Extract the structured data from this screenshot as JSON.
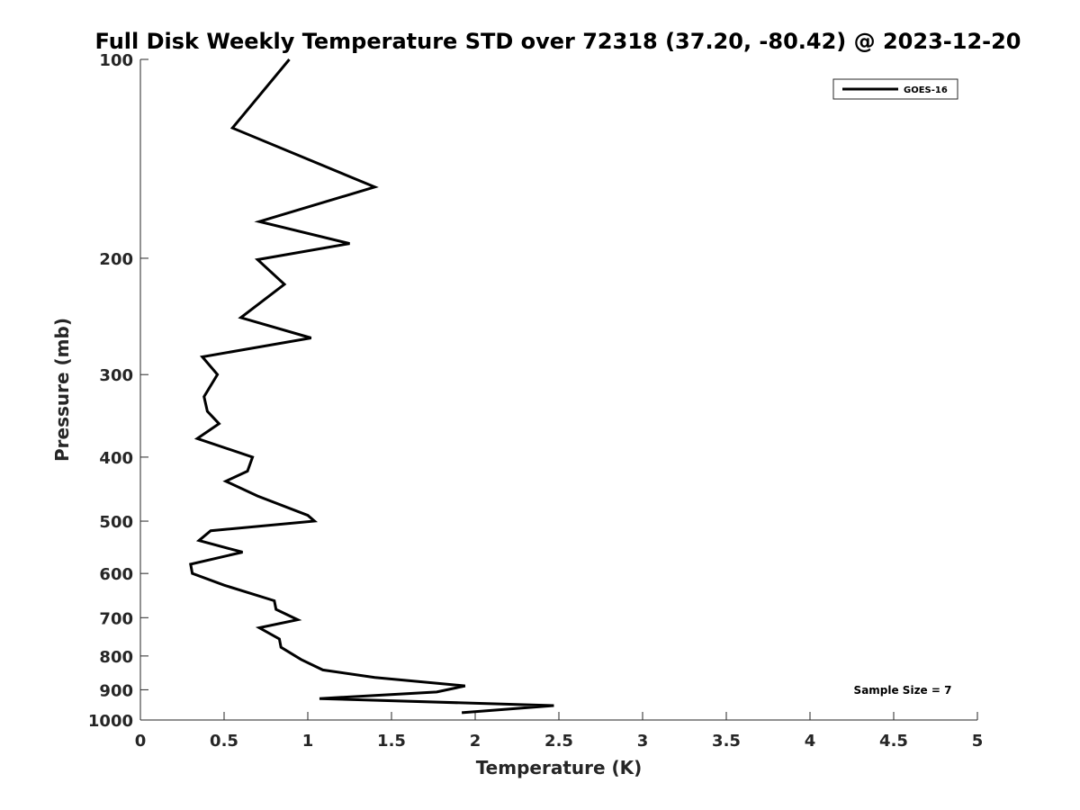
{
  "chart_data": {
    "type": "line",
    "title": "Full Disk Weekly Temperature STD over 72318 (37.20, -80.42) @ 2023-12-20",
    "xlabel": "Temperature (K)",
    "ylabel": "Pressure (mb)",
    "xlim": [
      0,
      5
    ],
    "ylim": [
      100,
      1000
    ],
    "y_scale": "log",
    "y_reversed": true,
    "xticks": [
      0,
      0.5,
      1,
      1.5,
      2,
      2.5,
      3,
      3.5,
      4,
      4.5,
      5
    ],
    "xtick_labels": [
      "0",
      "0.5",
      "1",
      "1.5",
      "2",
      "2.5",
      "3",
      "3.5",
      "4",
      "4.5",
      "5"
    ],
    "yticks": [
      100,
      200,
      300,
      400,
      500,
      600,
      700,
      800,
      900,
      1000
    ],
    "ytick_labels": [
      "100",
      "200",
      "300",
      "400",
      "500",
      "600",
      "700",
      "800",
      "900",
      "1000"
    ],
    "grid": false,
    "legend_position": "top-right",
    "series": [
      {
        "name": "GOES-16",
        "color": "#000000",
        "x": [
          0.89,
          0.55,
          1.4,
          0.71,
          1.25,
          0.7,
          0.86,
          0.6,
          1.02,
          0.37,
          0.46,
          0.38,
          0.4,
          0.47,
          0.34,
          0.67,
          0.64,
          0.51,
          0.7,
          1.0,
          1.04,
          0.42,
          0.35,
          0.61,
          0.3,
          0.31,
          0.5,
          0.8,
          0.81,
          0.94,
          0.71,
          0.83,
          0.84,
          0.96,
          1.09,
          1.4,
          1.94,
          1.77,
          1.07,
          2.47,
          1.92
        ],
        "y": [
          100,
          127,
          156,
          176,
          190,
          201,
          219,
          246,
          264,
          282,
          300,
          324,
          341,
          356,
          375,
          400,
          420,
          435,
          458,
          490,
          500,
          517,
          535,
          557,
          581,
          600,
          625,
          660,
          680,
          705,
          725,
          754,
          776,
          810,
          840,
          862,
          888,
          907,
          928,
          951,
          975
        ]
      }
    ],
    "annotations": [
      "Sample Size = 7"
    ]
  }
}
